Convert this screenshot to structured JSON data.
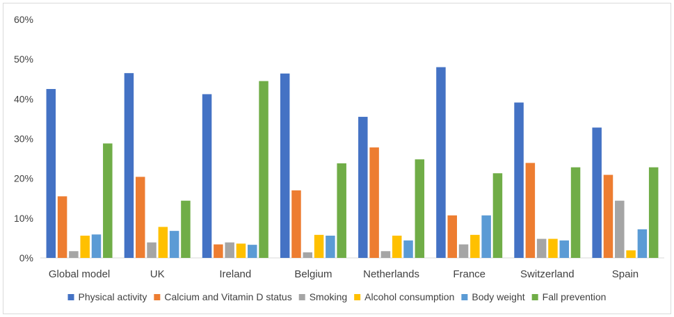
{
  "chart_data": {
    "type": "bar",
    "title": "",
    "xlabel": "",
    "ylabel": "",
    "ylim": [
      0,
      60
    ],
    "y_tick_values": [
      0,
      10,
      20,
      30,
      40,
      50,
      60
    ],
    "y_tick_labels": [
      "0%",
      "10%",
      "20%",
      "30%",
      "40%",
      "50%",
      "60%"
    ],
    "grid": false,
    "legend_position": "bottom",
    "categories": [
      "Global model",
      "UK",
      "Ireland",
      "Belgium",
      "Netherlands",
      "France",
      "Switzerland",
      "Spain"
    ],
    "series": [
      {
        "name": "Physical activity",
        "color": "#4472c4",
        "values": [
          42.5,
          46.5,
          41.2,
          46.4,
          35.5,
          48.0,
          39.1,
          32.8
        ]
      },
      {
        "name": "Calcium and Vitamin D status",
        "color": "#ed7d31",
        "values": [
          15.5,
          20.4,
          3.4,
          17.0,
          27.8,
          10.7,
          23.9,
          20.9
        ]
      },
      {
        "name": "Smoking",
        "color": "#a5a5a5",
        "values": [
          1.7,
          3.9,
          3.9,
          1.4,
          1.7,
          3.4,
          4.8,
          14.4
        ]
      },
      {
        "name": "Alcohol consumption",
        "color": "#ffc000",
        "values": [
          5.6,
          7.8,
          3.6,
          5.8,
          5.6,
          5.8,
          4.8,
          1.9
        ]
      },
      {
        "name": "Body weight",
        "color": "#5b9bd5",
        "values": [
          5.9,
          6.8,
          3.3,
          5.6,
          4.4,
          10.7,
          4.4,
          7.2
        ]
      },
      {
        "name": "Fall prevention",
        "color": "#70ad47",
        "values": [
          28.8,
          14.4,
          44.5,
          23.8,
          24.8,
          21.3,
          22.8,
          22.8
        ]
      }
    ]
  }
}
